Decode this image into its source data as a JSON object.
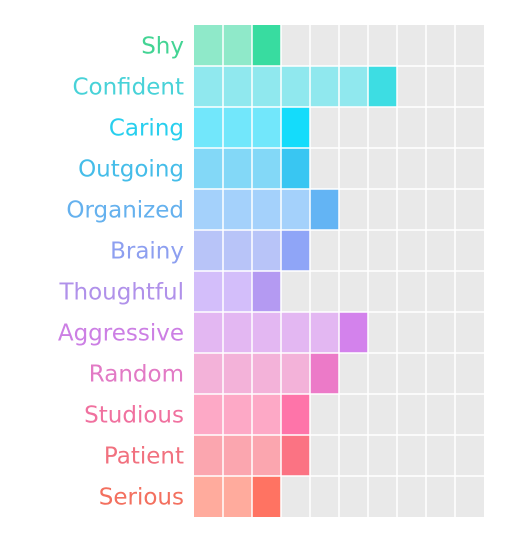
{
  "chart_data": {
    "type": "bar",
    "orientation": "horizontal",
    "categories": [
      "Shy",
      "Confident",
      "Caring",
      "Outgoing",
      "Organized",
      "Brainy",
      "Thoughtful",
      "Aggressive",
      "Random",
      "Studious",
      "Patient",
      "Serious"
    ],
    "values": [
      3,
      7,
      4,
      4,
      5,
      4,
      3,
      6,
      5,
      4,
      4,
      3
    ],
    "xlim": [
      0,
      10
    ],
    "grid": true,
    "colors": {
      "strong": [
        "#38dca0",
        "#3ddde3",
        "#14dcfb",
        "#39c6f2",
        "#63b4f4",
        "#8fa5f7",
        "#b49af2",
        "#d382ec",
        "#ec7ac8",
        "#fe74a9",
        "#fb7383",
        "#ff7362"
      ],
      "light": [
        "#8fe9c9",
        "#90e8ee",
        "#72e7fb",
        "#83d8f7",
        "#a4d1fb",
        "#b8c4f8",
        "#d3befa",
        "#e3b7f2",
        "#f3b2d9",
        "#fda9c6",
        "#fba6af",
        "#ffab9d"
      ],
      "background": "#e9e9e9",
      "label": [
        "#43d494",
        "#48d2d8",
        "#28cfee",
        "#45bde9",
        "#65b1ee",
        "#8d9ff0",
        "#b091ea",
        "#cc7fe4",
        "#e27ac5",
        "#f0719f",
        "#f1717f",
        "#f3705f"
      ]
    }
  }
}
